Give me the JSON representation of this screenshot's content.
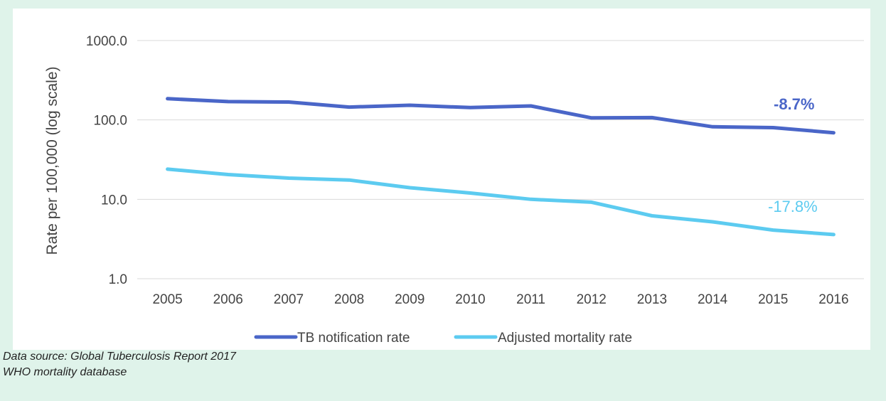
{
  "chart_data": {
    "type": "line",
    "ylabel": "Rate per 100,000 (log scale)",
    "yscale": "log",
    "ylim": [
      1.0,
      1000.0
    ],
    "yticks": [
      "1.0",
      "10.0",
      "100.0",
      "1000.0"
    ],
    "grid": true,
    "legend_position": "bottom",
    "categories": [
      "2005",
      "2006",
      "2007",
      "2008",
      "2009",
      "2010",
      "2011",
      "2012",
      "2013",
      "2014",
      "2015",
      "2016"
    ],
    "series": [
      {
        "name": "TB notification rate",
        "color": "#4a66c8",
        "values": [
          185,
          170,
          168,
          145,
          153,
          143,
          150,
          106,
          107,
          82,
          80,
          69
        ],
        "annotation": "-8.7%"
      },
      {
        "name": "Adjusted mortality rate",
        "color": "#5ccbf0",
        "values": [
          24,
          20.5,
          18.5,
          17.5,
          14,
          12,
          10,
          9.2,
          6.2,
          5.2,
          4.1,
          3.6
        ],
        "annotation": "-17.8%"
      }
    ]
  },
  "source_lines": [
    "Data source: Global Tuberculosis Report 2017",
    "WHO mortality database"
  ]
}
